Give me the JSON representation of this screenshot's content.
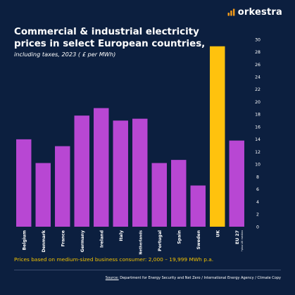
{
  "brand": {
    "name": "orkestra",
    "accent": "#f29a1a"
  },
  "colors": {
    "background": "#0c1f3f",
    "bar": "#b847d3",
    "highlight": "#ffc20e",
    "footnote": "#f2c200",
    "text": "#ffffff"
  },
  "chart_data": {
    "type": "bar",
    "title": "Commercial & industrial electricity prices in select European countries,",
    "subtitle": "including taxes, 2023 ( £ per MWh)",
    "categories": [
      "Belgium",
      "Denmark",
      "France",
      "Germany",
      "Ireland",
      "Italy",
      "Netherlands",
      "Portugal",
      "Spain",
      "Sweden",
      "UK",
      "EU 27"
    ],
    "category_notes": [
      "",
      "",
      "",
      "",
      "",
      "",
      "",
      "",
      "",
      "",
      "",
      "*plus UK median"
    ],
    "values": [
      14.0,
      10.2,
      12.9,
      17.8,
      19.0,
      17.0,
      17.3,
      10.2,
      10.7,
      6.6,
      28.9,
      13.8
    ],
    "highlight_category": "UK",
    "ylim": [
      0,
      30
    ],
    "yticks": [
      0,
      2,
      4,
      6,
      8,
      10,
      12,
      14,
      16,
      18,
      20,
      22,
      24,
      26,
      28,
      30
    ],
    "yaxis_side": "right",
    "xlabel": "",
    "ylabel": "",
    "grid": false,
    "legend": "none"
  },
  "footnote": "Prices based on medium-sized business consumer: 2,000 – 19,999 MWh p.a.",
  "source": {
    "prefix": "Source:",
    "text": " Department for Energy Security and Net Zero / International Energy Agency / Climate Copy"
  }
}
